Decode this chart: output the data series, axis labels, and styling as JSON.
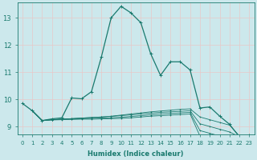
{
  "xlabel": "Humidex (Indice chaleur)",
  "xlim": [
    -0.5,
    23.5
  ],
  "ylim": [
    8.7,
    13.55
  ],
  "yticks": [
    9,
    10,
    11,
    12,
    13
  ],
  "xticks": [
    0,
    1,
    2,
    3,
    4,
    5,
    6,
    7,
    8,
    9,
    10,
    11,
    12,
    13,
    14,
    15,
    16,
    17,
    18,
    19,
    20,
    21,
    22,
    23
  ],
  "bg_color": "#cce8ec",
  "line_color": "#1a7a6e",
  "grid_color": "#e8c8c8",
  "main_line": {
    "x": [
      0,
      1,
      2,
      3,
      4,
      5,
      6,
      7,
      8,
      9,
      10,
      11,
      12,
      13,
      14,
      15,
      16,
      17,
      18,
      19,
      20,
      21,
      22,
      23
    ],
    "y": [
      9.85,
      9.58,
      9.22,
      9.28,
      9.32,
      10.05,
      10.02,
      10.28,
      11.55,
      13.0,
      13.42,
      13.18,
      12.82,
      11.68,
      10.88,
      11.38,
      11.38,
      11.08,
      9.68,
      9.72,
      9.38,
      9.08,
      8.62,
      8.68
    ]
  },
  "flat_lines": [
    {
      "x": [
        1,
        2,
        3,
        4,
        5,
        6,
        7,
        8,
        9,
        10,
        11,
        12,
        13,
        14,
        15,
        16,
        17,
        18,
        19,
        20,
        21,
        22,
        23
      ],
      "y": [
        9.58,
        9.22,
        9.25,
        9.27,
        9.29,
        9.31,
        9.33,
        9.35,
        9.38,
        9.42,
        9.46,
        9.5,
        9.54,
        9.57,
        9.6,
        9.63,
        9.65,
        9.35,
        9.25,
        9.15,
        9.05,
        8.65,
        8.68
      ]
    },
    {
      "x": [
        1,
        2,
        3,
        4,
        5,
        6,
        7,
        8,
        9,
        10,
        11,
        12,
        13,
        14,
        15,
        16,
        17,
        18,
        19,
        20,
        21,
        22,
        23
      ],
      "y": [
        9.58,
        9.22,
        9.25,
        9.27,
        9.29,
        9.31,
        9.33,
        9.35,
        9.37,
        9.4,
        9.43,
        9.46,
        9.49,
        9.52,
        9.54,
        9.56,
        9.58,
        9.1,
        9.0,
        8.9,
        8.8,
        8.62,
        8.65
      ]
    },
    {
      "x": [
        1,
        2,
        3,
        4,
        5,
        6,
        7,
        8,
        9,
        10,
        11,
        12,
        13,
        14,
        15,
        16,
        17,
        18,
        19,
        20,
        21,
        22,
        23
      ],
      "y": [
        9.58,
        9.22,
        9.25,
        9.27,
        9.28,
        9.29,
        9.3,
        9.31,
        9.32,
        9.34,
        9.37,
        9.4,
        9.43,
        9.46,
        9.48,
        9.5,
        9.52,
        8.85,
        8.75,
        8.65,
        8.55,
        8.6,
        8.62
      ]
    },
    {
      "x": [
        1,
        2,
        3,
        4,
        5,
        6,
        7,
        8,
        9,
        10,
        11,
        12,
        13,
        14,
        15,
        16,
        17,
        18,
        19,
        20,
        21,
        22,
        23
      ],
      "y": [
        9.58,
        9.22,
        9.24,
        9.25,
        9.26,
        9.27,
        9.27,
        9.28,
        9.29,
        9.3,
        9.32,
        9.35,
        9.38,
        9.4,
        9.42,
        9.44,
        9.46,
        8.65,
        8.55,
        8.45,
        8.4,
        8.58,
        8.6
      ]
    }
  ]
}
